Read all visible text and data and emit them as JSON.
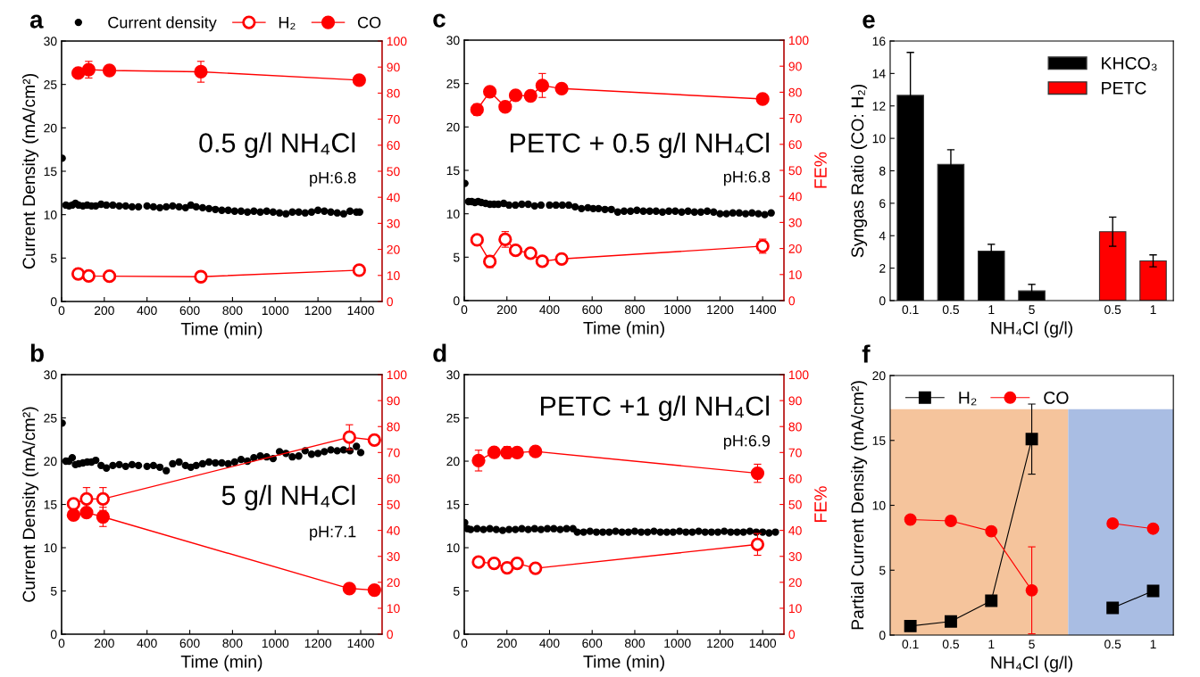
{
  "chart_data": [
    {
      "type": "scatter",
      "title": "a",
      "xlabel": "Time (min)",
      "ylabel": "Current Density (mA/cm²)",
      "xlim": [
        0,
        1500
      ],
      "xticks": [
        0,
        200,
        400,
        600,
        800,
        1000,
        1200,
        1400
      ],
      "ylim": [
        0,
        30
      ],
      "yticks": [
        0,
        5,
        10,
        15,
        20,
        25,
        30
      ],
      "y2lim": [
        0,
        100
      ],
      "y2ticks": [
        0,
        10,
        20,
        30,
        40,
        50,
        60,
        70,
        80,
        90,
        100
      ],
      "legend": "top",
      "annotations": [
        "0.5 g/l NH₄Cl",
        "pH:6.8"
      ],
      "series": [
        {
          "name": "Current density",
          "type": "scatter",
          "color": "#000000",
          "marker": "circle",
          "x": [
            3,
            20,
            35,
            50,
            65,
            80,
            100,
            120,
            140,
            160,
            185,
            210,
            240,
            270,
            300,
            330,
            360,
            400,
            430,
            460,
            490,
            520,
            550,
            580,
            605,
            630,
            660,
            690,
            720,
            750,
            780,
            810,
            840,
            870,
            900,
            930,
            960,
            990,
            1020,
            1050,
            1080,
            1110,
            1140,
            1170,
            1200,
            1230,
            1260,
            1290,
            1320,
            1350,
            1380,
            1395
          ],
          "values": [
            16.5,
            11.1,
            11.0,
            11.1,
            11.3,
            11.1,
            11.0,
            11.1,
            11.0,
            11.0,
            11.2,
            11.1,
            11.1,
            11.0,
            11.0,
            10.9,
            10.9,
            11.0,
            10.9,
            10.8,
            10.9,
            11.0,
            10.9,
            10.8,
            11.1,
            10.9,
            10.8,
            10.7,
            10.6,
            10.5,
            10.5,
            10.4,
            10.4,
            10.3,
            10.4,
            10.3,
            10.4,
            10.3,
            10.2,
            10.1,
            10.3,
            10.3,
            10.2,
            10.3,
            10.5,
            10.4,
            10.3,
            10.2,
            10.1,
            10.4,
            10.3,
            10.3
          ]
        },
        {
          "name": "H₂",
          "type": "line",
          "axis": "y2",
          "color": "#ff0000",
          "marker": "circle",
          "x": [
            78,
            127,
            224,
            652,
            1393
          ],
          "values": [
            10.6,
            9.8,
            9.7,
            9.5,
            12.0
          ]
        },
        {
          "name": "CO",
          "type": "line",
          "axis": "y2",
          "color": "#ff0000",
          "marker": "circle",
          "x": [
            78,
            127,
            224,
            652,
            1393
          ],
          "values": [
            87.7,
            89.0,
            88.7,
            88.2,
            85.0
          ],
          "errors": [
            null,
            3.2,
            1.8,
            4.0,
            null
          ]
        }
      ]
    },
    {
      "type": "scatter",
      "title": "b",
      "xlabel": "Time (min)",
      "ylabel": "Current Density (mA/cm²)",
      "xlim": [
        0,
        1500
      ],
      "xticks": [
        0,
        200,
        400,
        600,
        800,
        1000,
        1200,
        1400
      ],
      "ylim": [
        0,
        30
      ],
      "yticks": [
        0,
        5,
        10,
        15,
        20,
        25,
        30
      ],
      "y2lim": [
        0,
        100
      ],
      "y2ticks": [
        0,
        10,
        20,
        30,
        40,
        50,
        60,
        70,
        80,
        90,
        100
      ],
      "annotations": [
        "5 g/l NH₄Cl",
        "pH:7.1"
      ],
      "series": [
        {
          "type": "scatter",
          "color": "#000000",
          "marker": "circle",
          "x": [
            3,
            20,
            35,
            50,
            65,
            80,
            100,
            120,
            140,
            160,
            185,
            210,
            240,
            270,
            300,
            330,
            360,
            400,
            430,
            460,
            490,
            520,
            550,
            580,
            605,
            630,
            660,
            690,
            720,
            750,
            780,
            810,
            840,
            870,
            900,
            930,
            960,
            990,
            1020,
            1050,
            1080,
            1110,
            1140,
            1170,
            1200,
            1230,
            1260,
            1290,
            1320,
            1350,
            1380,
            1400
          ],
          "values": [
            24.4,
            20.0,
            20.0,
            20.4,
            19.6,
            19.7,
            19.8,
            19.9,
            19.9,
            20.1,
            19.5,
            19.2,
            19.5,
            19.6,
            19.4,
            19.6,
            19.5,
            19.4,
            19.5,
            19.3,
            18.9,
            19.7,
            19.9,
            19.5,
            19.3,
            19.5,
            19.7,
            19.9,
            19.8,
            19.8,
            19.7,
            19.9,
            20.2,
            20.0,
            20.4,
            20.6,
            20.5,
            20.3,
            21.1,
            20.9,
            20.5,
            20.6,
            21.2,
            20.8,
            20.9,
            21.1,
            21.3,
            21.2,
            21.3,
            21.2,
            21.7,
            21.0
          ]
        },
        {
          "type": "line",
          "axis": "y2",
          "color": "#ff0000",
          "marker": "circle",
          "x": [
            56,
            117,
            194,
            1347,
            1464
          ],
          "values": [
            50.2,
            52.1,
            52.1,
            75.9,
            74.8
          ],
          "errors": [
            null,
            4.4,
            4.4,
            4.8,
            null
          ]
        },
        {
          "type": "line",
          "axis": "y2",
          "color": "#ff0000",
          "marker": "circle",
          "x": [
            56,
            117,
            194,
            1347,
            1464
          ],
          "values": [
            45.9,
            46.9,
            45.2,
            17.6,
            17.0
          ],
          "errors": [
            1.2,
            null,
            3.7,
            null,
            null
          ]
        }
      ]
    },
    {
      "type": "scatter",
      "title": "c",
      "xlabel": "Time (min)",
      "y2label": "FE%",
      "xlim": [
        0,
        1500
      ],
      "xticks": [
        0,
        200,
        400,
        600,
        800,
        1000,
        1200,
        1400
      ],
      "ylim": [
        0,
        30
      ],
      "yticks": [
        0,
        5,
        10,
        15,
        20,
        25,
        30
      ],
      "y2lim": [
        0,
        100
      ],
      "y2ticks": [
        0,
        10,
        20,
        30,
        40,
        50,
        60,
        70,
        80,
        90,
        100
      ],
      "annotations": [
        "PETC + 0.5 g/l NH₄Cl",
        "pH:6.8"
      ],
      "series": [
        {
          "type": "scatter",
          "color": "#000000",
          "marker": "circle",
          "x": [
            3,
            20,
            35,
            50,
            65,
            80,
            100,
            120,
            140,
            160,
            185,
            210,
            240,
            270,
            300,
            330,
            360,
            400,
            430,
            460,
            490,
            520,
            550,
            580,
            605,
            630,
            660,
            690,
            720,
            750,
            780,
            810,
            840,
            870,
            900,
            930,
            960,
            990,
            1020,
            1050,
            1080,
            1110,
            1140,
            1170,
            1200,
            1230,
            1260,
            1290,
            1320,
            1350,
            1380,
            1410,
            1440
          ],
          "values": [
            13.5,
            11.4,
            11.4,
            11.3,
            11.4,
            11.3,
            11.2,
            11.1,
            11.1,
            11.1,
            11.2,
            11.0,
            11.0,
            11.1,
            11.1,
            10.9,
            11.0,
            11.0,
            11.0,
            11.0,
            11.0,
            10.8,
            10.6,
            10.7,
            10.6,
            10.6,
            10.5,
            10.5,
            10.2,
            10.3,
            10.3,
            10.4,
            10.3,
            10.3,
            10.3,
            10.2,
            10.3,
            10.3,
            10.2,
            10.3,
            10.2,
            10.2,
            10.3,
            10.2,
            10.0,
            10.0,
            10.1,
            10.1,
            10.0,
            10.1,
            10.0,
            9.9,
            10.1
          ]
        },
        {
          "type": "line",
          "axis": "y2",
          "color": "#ff0000",
          "marker": "circle",
          "x": [
            60,
            120,
            192,
            241,
            311,
            366,
            457,
            1400
          ],
          "values": [
            23.3,
            15.0,
            23.5,
            19.3,
            18.2,
            15.1,
            16.0,
            20.9
          ],
          "errors": [
            null,
            2.3,
            3.0,
            null,
            null,
            null,
            null,
            2.7
          ]
        },
        {
          "type": "line",
          "axis": "y2",
          "color": "#ff0000",
          "marker": "circle",
          "x": [
            60,
            120,
            192,
            241,
            311,
            366,
            457,
            1400
          ],
          "values": [
            73.3,
            80.2,
            74.4,
            78.8,
            78.6,
            82.6,
            81.4,
            77.4
          ],
          "errors": [
            2.2,
            null,
            null,
            null,
            null,
            4.6,
            null,
            null
          ]
        }
      ]
    },
    {
      "type": "scatter",
      "title": "d",
      "xlabel": "Time (min)",
      "y2label": "FE%",
      "xlim": [
        0,
        1500
      ],
      "xticks": [
        0,
        200,
        400,
        600,
        800,
        1000,
        1200,
        1400
      ],
      "ylim": [
        0,
        30
      ],
      "yticks": [
        0,
        5,
        10,
        15,
        20,
        25,
        30
      ],
      "y2lim": [
        0,
        100
      ],
      "y2ticks": [
        0,
        10,
        20,
        30,
        40,
        50,
        60,
        70,
        80,
        90,
        100
      ],
      "annotations": [
        "PETC +1 g/l NH₄Cl",
        "pH:6.9"
      ],
      "series": [
        {
          "type": "scatter",
          "color": "#000000",
          "marker": "circle",
          "x": [
            2,
            15,
            30,
            60,
            90,
            120,
            150,
            180,
            210,
            240,
            270,
            300,
            330,
            360,
            390,
            420,
            450,
            480,
            510,
            530,
            560,
            590,
            620,
            650,
            680,
            710,
            740,
            770,
            800,
            830,
            860,
            890,
            920,
            950,
            980,
            1010,
            1040,
            1070,
            1100,
            1130,
            1160,
            1190,
            1220,
            1250,
            1280,
            1310,
            1340,
            1370,
            1400,
            1430,
            1460
          ],
          "values": [
            12.9,
            12.2,
            12.1,
            12.2,
            12.1,
            12.2,
            12.1,
            12.0,
            12.1,
            12.1,
            12.2,
            12.1,
            12.2,
            12.1,
            12.2,
            12.2,
            12.1,
            12.2,
            12.2,
            11.8,
            11.8,
            11.9,
            11.8,
            11.8,
            11.8,
            11.9,
            11.8,
            11.8,
            11.9,
            11.8,
            11.8,
            11.9,
            11.8,
            11.8,
            11.8,
            11.9,
            11.8,
            11.8,
            11.9,
            11.8,
            11.8,
            11.8,
            11.9,
            11.8,
            11.8,
            11.8,
            11.9,
            11.8,
            11.8,
            11.7,
            11.8
          ]
        },
        {
          "type": "line",
          "axis": "y2",
          "color": "#ff0000",
          "marker": "circle",
          "x": [
            67,
            140,
            201,
            248,
            334,
            1376
          ],
          "values": [
            27.8,
            27.3,
            25.6,
            27.3,
            25.4,
            34.6
          ],
          "errors": [
            null,
            null,
            null,
            null,
            null,
            4.2
          ]
        },
        {
          "type": "line",
          "axis": "y2",
          "color": "#ff0000",
          "marker": "circle",
          "x": [
            67,
            140,
            201,
            248,
            334,
            1376
          ],
          "values": [
            66.9,
            70.1,
            70.0,
            70.0,
            70.4,
            62.0
          ],
          "errors": [
            4.0,
            null,
            2.3,
            null,
            1.7,
            3.5
          ]
        }
      ]
    },
    {
      "type": "bar",
      "title": "e",
      "xlabel": "NH₄Cl (g/l)",
      "ylabel": "Syngas Ratio (CO: H₂)",
      "categories": [
        "0.1",
        "0.5",
        "1",
        "5",
        null,
        "0.5",
        "1"
      ],
      "ylim": [
        0,
        16
      ],
      "yticks": [
        0,
        2,
        4,
        6,
        8,
        10,
        12,
        14,
        16
      ],
      "legend": "top right",
      "series": [
        {
          "name": "KHCO₃",
          "color": "#000000",
          "values": [
            12.65,
            8.4,
            3.05,
            0.6,
            null,
            null,
            null
          ],
          "errors": [
            2.65,
            0.9,
            0.42,
            0.4,
            null,
            null,
            null
          ]
        },
        {
          "name": "PETC",
          "color": "#ff0000",
          "values": [
            null,
            null,
            null,
            null,
            null,
            4.25,
            2.45
          ],
          "errors": [
            null,
            null,
            null,
            null,
            null,
            0.9,
            0.37
          ]
        }
      ]
    },
    {
      "type": "line",
      "title": "f",
      "xlabel": "NH₄Cl (g/l)",
      "ylabel": "Partial Current Density (mA/cm²)",
      "categories": [
        "0.1",
        "0.5",
        "1",
        "5",
        null,
        "0.5",
        "1"
      ],
      "ylim": [
        0,
        20
      ],
      "yticks": [
        0,
        5,
        10,
        15,
        20
      ],
      "legend": "top left",
      "series": [
        {
          "name": "H₂",
          "color": "#000000",
          "marker": "square",
          "values": [
            0.7,
            1.05,
            2.65,
            15.1,
            null,
            2.1,
            3.4
          ],
          "errors": [
            null,
            null,
            null,
            2.7,
            null,
            null,
            null
          ]
        },
        {
          "name": "CO",
          "color": "#ff0000",
          "marker": "circle",
          "values": [
            8.9,
            8.8,
            8.0,
            3.45,
            null,
            8.6,
            8.2
          ],
          "errors": [
            null,
            null,
            null,
            3.35,
            null,
            null,
            null
          ]
        }
      ]
    }
  ]
}
